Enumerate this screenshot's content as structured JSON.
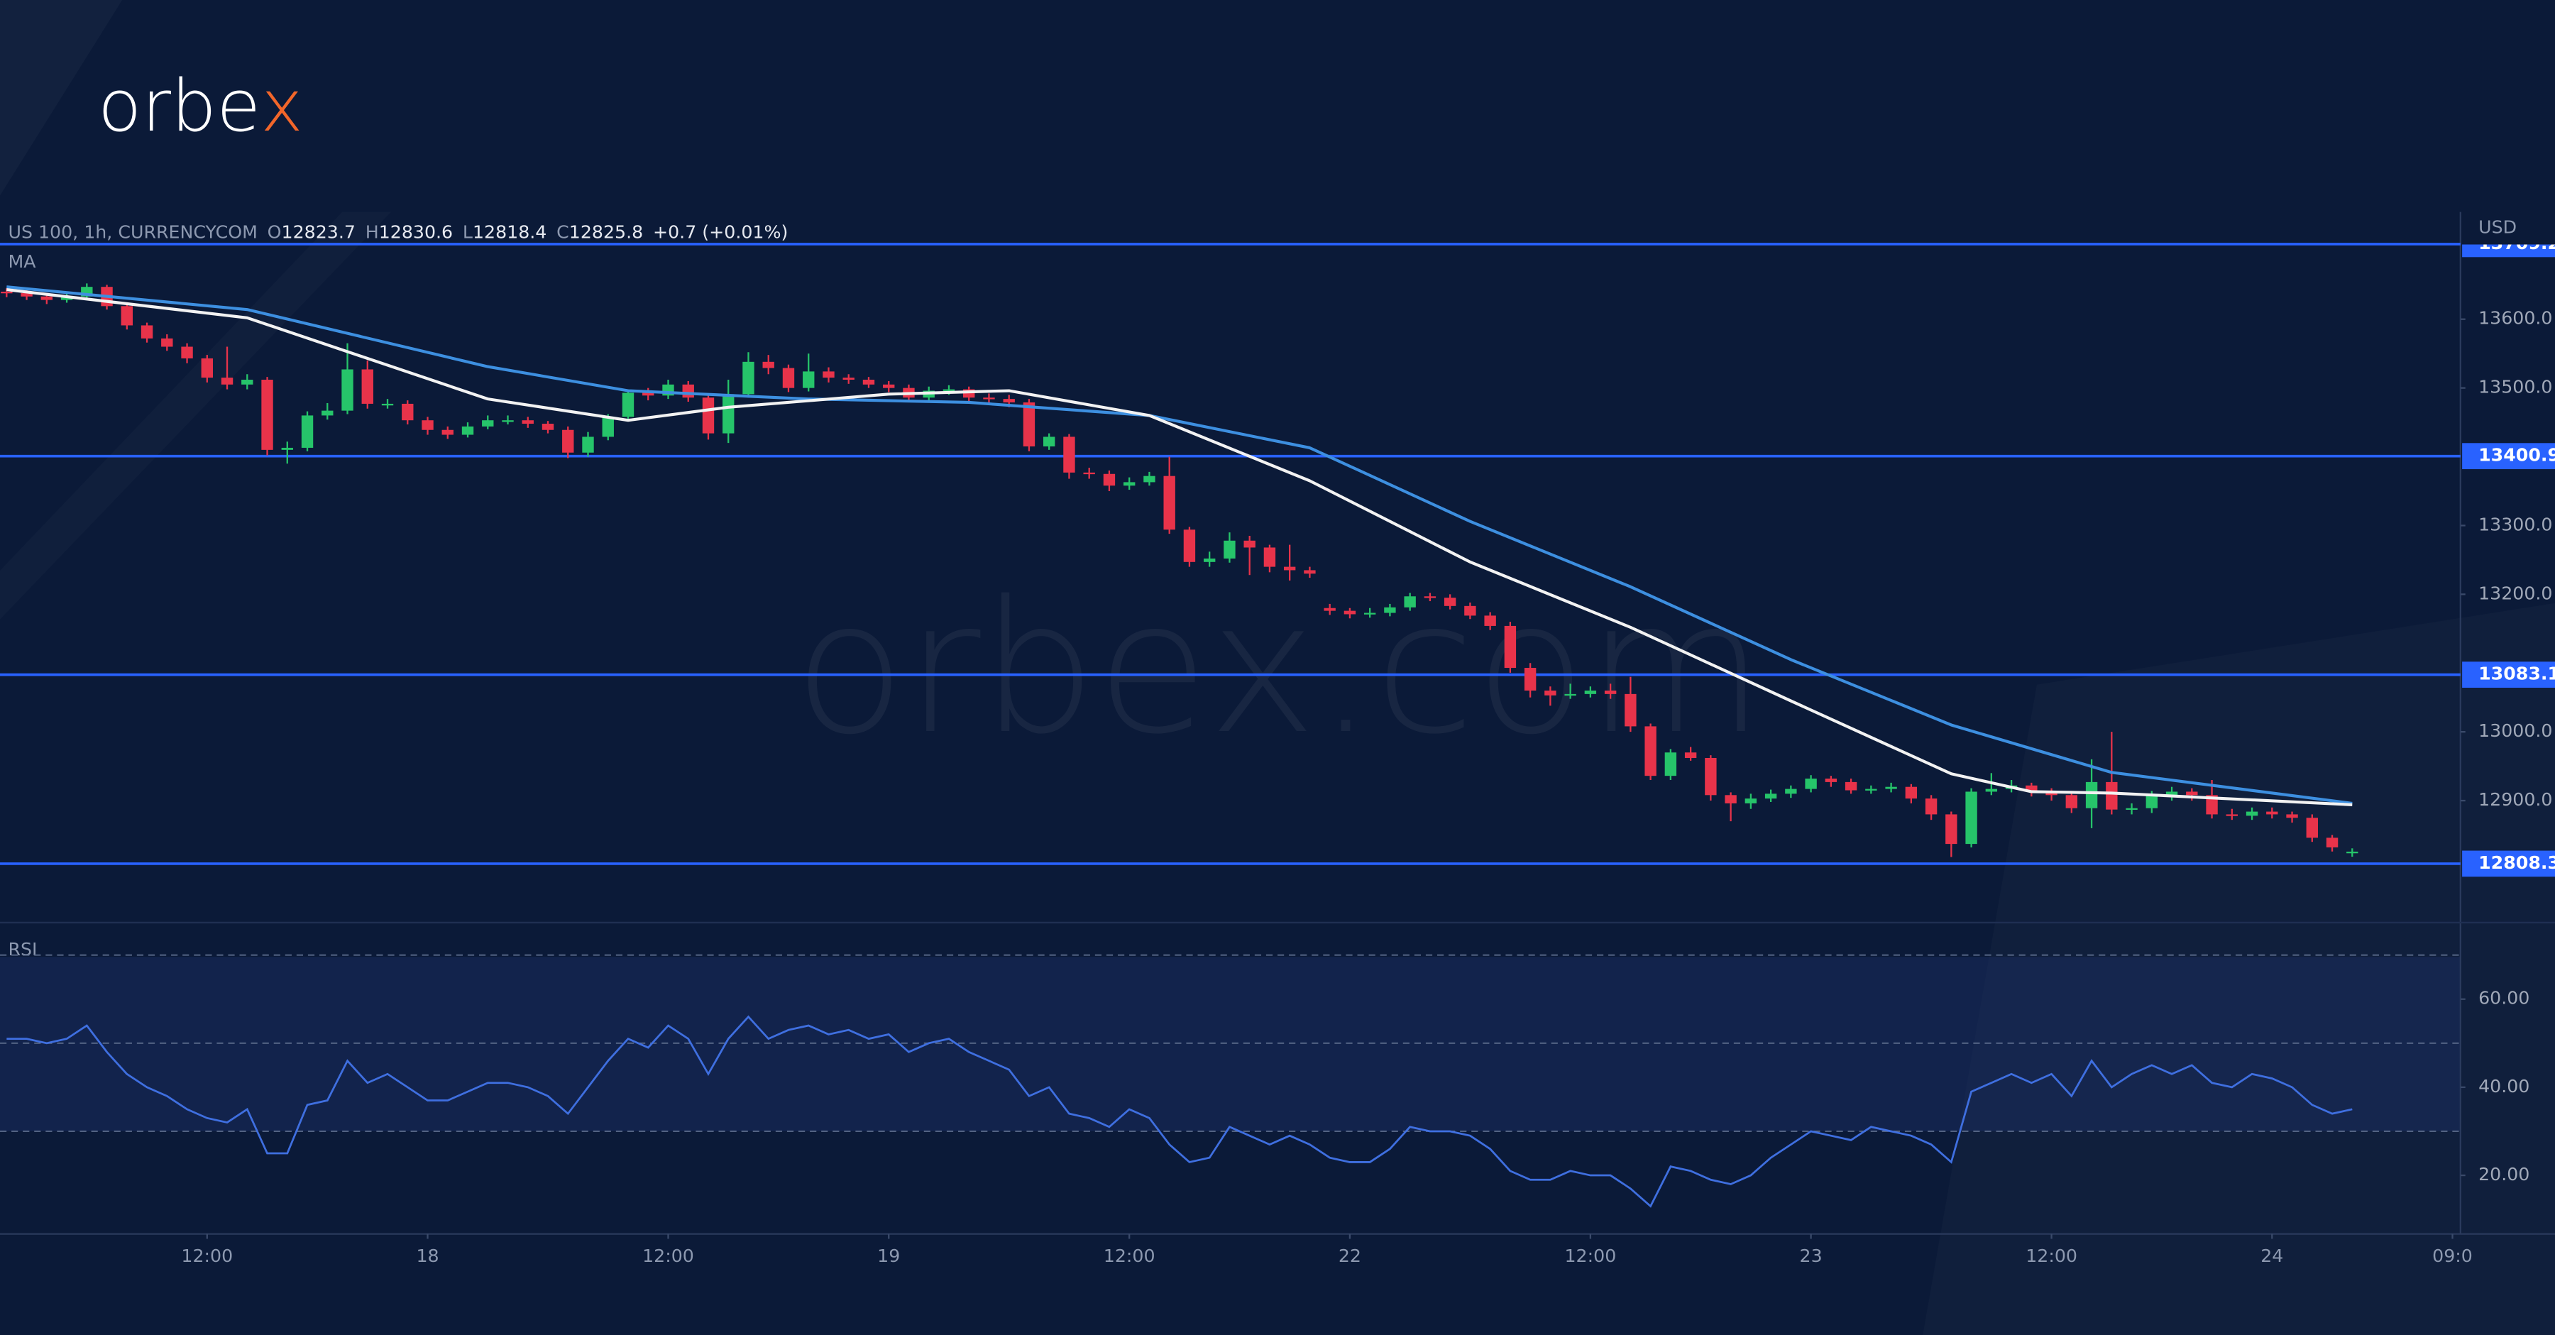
{
  "chart_data": {
    "type": "candlestick",
    "logo": [
      "orbe",
      "x"
    ],
    "watermark": [
      "orbe",
      "x",
      ".com"
    ],
    "title": "US 100, 1h, CURRENCYCOM",
    "ohlc_labels": [
      "O",
      "H",
      "L",
      "C"
    ],
    "change": "+0.7 (+0.01%)",
    "y_unit": "USD",
    "up_color": "#26c46a",
    "down_color": "#e8334a",
    "xlim": [
      -0.33,
      122.4
    ],
    "ylim": [
      12725,
      13756
    ],
    "xticks": [
      {
        "value": 10,
        "label": "12:00"
      },
      {
        "value": 21,
        "label": "18"
      },
      {
        "value": 33,
        "label": "12:00"
      },
      {
        "value": 44,
        "label": "19"
      },
      {
        "value": 56,
        "label": "12:00"
      },
      {
        "value": 67,
        "label": "22"
      },
      {
        "value": 79,
        "label": "12:00"
      },
      {
        "value": 90,
        "label": "23"
      },
      {
        "value": 102,
        "label": "12:00"
      },
      {
        "value": 113,
        "label": "24"
      },
      {
        "value": 122,
        "label": "09:0"
      }
    ],
    "yticks": [
      {
        "value": 13600,
        "label": "13600.0"
      },
      {
        "value": 13500,
        "label": "13500.0"
      },
      {
        "value": 13300,
        "label": "13300.0"
      },
      {
        "value": 13200,
        "label": "13200.0"
      },
      {
        "value": 13000,
        "label": "13000.0"
      },
      {
        "value": 12900,
        "label": "12900.0"
      }
    ],
    "levels": [
      13709.2,
      13400.9,
      13083.1,
      12808.3
    ],
    "level_color": "#2962ff",
    "open": [
      13640,
      13638,
      13633,
      13628,
      13633,
      13647,
      13619,
      13591,
      13572,
      13560,
      13543,
      13515,
      13505,
      13512,
      13410,
      13413,
      13460,
      13467,
      13527,
      13477,
      13477,
      13453,
      13439,
      13432,
      13444,
      13453,
      13453,
      13448,
      13439,
      13406,
      13429,
      13458,
      13493,
      13489,
      13505,
      13486,
      13434,
      13491,
      13538,
      13529,
      13500,
      13524,
      13515,
      13512,
      13505,
      13500,
      13486,
      13496,
      13498,
      13486,
      13484,
      13479,
      13415,
      13429,
      13377,
      13375,
      13358,
      13363,
      13372,
      13294,
      13247,
      13252,
      13278,
      13268,
      13240,
      13235,
      13180,
      13176,
      13171,
      13173,
      13181,
      13197,
      13195,
      13183,
      13169,
      13154,
      13093,
      13060,
      13053,
      13055,
      13060,
      13055,
      13008,
      12936,
      12970,
      12962,
      12908,
      12896,
      12903,
      12910,
      12917,
      12932,
      12927,
      12915,
      12917,
      12920,
      12903,
      12880,
      12837,
      12913,
      12917,
      12922,
      12913,
      12908,
      12889,
      12927,
      12887,
      12889,
      12908,
      12913,
      12908,
      12880,
      12878,
      12884,
      12880,
      12875,
      12846,
      12823.7
    ],
    "high": [
      13645,
      13642,
      13637,
      13638,
      13652,
      13650,
      13622,
      13595,
      13578,
      13565,
      13548,
      13560,
      13520,
      13516,
      13422,
      13466,
      13478,
      13565,
      13540,
      13484,
      13482,
      13458,
      13444,
      13450,
      13460,
      13460,
      13458,
      13452,
      13444,
      13436,
      13462,
      13498,
      13500,
      13512,
      13510,
      13492,
      13512,
      13552,
      13548,
      13534,
      13550,
      13530,
      13520,
      13516,
      13510,
      13505,
      13502,
      13504,
      13502,
      13492,
      13490,
      13484,
      13434,
      13433,
      13384,
      13380,
      13370,
      13378,
      13400,
      13298,
      13262,
      13290,
      13285,
      13272,
      13272,
      13240,
      13186,
      13180,
      13180,
      13186,
      13202,
      13202,
      13200,
      13188,
      13174,
      13160,
      13100,
      13066,
      13070,
      13066,
      13070,
      13080,
      13012,
      12975,
      12978,
      12966,
      12912,
      12910,
      12916,
      12922,
      12937,
      12936,
      12932,
      12922,
      12926,
      12924,
      12908,
      12884,
      12918,
      12940,
      12930,
      12926,
      12918,
      12912,
      12960,
      13000,
      12896,
      12914,
      12920,
      12918,
      12930,
      12888,
      12890,
      12890,
      12884,
      12880,
      12850,
      12830.6
    ],
    "low": [
      13632,
      13628,
      13622,
      13624,
      13630,
      13614,
      13585,
      13566,
      13554,
      13536,
      13508,
      13498,
      13498,
      13402,
      13390,
      13408,
      13454,
      13462,
      13470,
      13470,
      13447,
      13432,
      13426,
      13428,
      13440,
      13447,
      13442,
      13434,
      13398,
      13400,
      13424,
      13452,
      13482,
      13484,
      13480,
      13425,
      13420,
      13486,
      13520,
      13494,
      13495,
      13508,
      13506,
      13500,
      13494,
      13480,
      13482,
      13490,
      13480,
      13478,
      13472,
      13408,
      13410,
      13368,
      13368,
      13350,
      13352,
      13358,
      13288,
      13240,
      13240,
      13246,
      13228,
      13232,
      13220,
      13224,
      13170,
      13165,
      13166,
      13168,
      13176,
      13190,
      13178,
      13164,
      13148,
      13086,
      13050,
      13038,
      13048,
      13050,
      13048,
      13000,
      12930,
      12930,
      12958,
      12900,
      12870,
      12888,
      12898,
      12904,
      12912,
      12920,
      12910,
      12910,
      12912,
      12896,
      12872,
      12818,
      12832,
      12908,
      12912,
      12906,
      12900,
      12882,
      12860,
      12880,
      12880,
      12882,
      12900,
      12900,
      12874,
      12872,
      12872,
      12874,
      12868,
      12840,
      12826,
      12818.4
    ],
    "close": [
      13638,
      13633,
      13628,
      13633,
      13647,
      13619,
      13591,
      13572,
      13560,
      13543,
      13515,
      13505,
      13512,
      13410,
      13413,
      13460,
      13467,
      13527,
      13477,
      13477,
      13453,
      13439,
      13432,
      13444,
      13453,
      13453,
      13448,
      13439,
      13406,
      13429,
      13458,
      13493,
      13489,
      13505,
      13486,
      13434,
      13491,
      13538,
      13529,
      13500,
      13524,
      13515,
      13512,
      13505,
      13500,
      13486,
      13496,
      13498,
      13486,
      13484,
      13479,
      13415,
      13429,
      13377,
      13375,
      13358,
      13363,
      13372,
      13294,
      13247,
      13252,
      13278,
      13268,
      13240,
      13235,
      13230,
      13176,
      13171,
      13173,
      13181,
      13197,
      13195,
      13183,
      13169,
      13154,
      13093,
      13060,
      13053,
      13055,
      13060,
      13055,
      13008,
      12936,
      12970,
      12962,
      12908,
      12896,
      12903,
      12910,
      12917,
      12932,
      12927,
      12915,
      12917,
      12920,
      12903,
      12880,
      12837,
      12913,
      12917,
      12922,
      12913,
      12908,
      12889,
      12927,
      12887,
      12889,
      12908,
      12913,
      12908,
      12880,
      12878,
      12884,
      12880,
      12875,
      12846,
      12832,
      12825.8
    ],
    "ma": {
      "label": "MA",
      "series": [
        {
          "color": "#3d8fe0",
          "x": [
            0,
            12,
            24,
            31,
            40,
            48,
            57,
            65,
            73,
            81,
            89,
            97,
            105,
            117
          ],
          "values": [
            13647,
            13614,
            13531,
            13496,
            13484,
            13479,
            13460,
            13413,
            13306,
            13211,
            13105,
            13010,
            12941,
            12896
          ]
        },
        {
          "color": "#f2f2f2",
          "x": [
            0,
            12,
            24,
            31,
            36,
            44,
            50,
            57,
            65,
            73,
            81,
            89,
            97,
            101,
            105,
            117
          ],
          "values": [
            13643,
            13602,
            13484,
            13453,
            13472,
            13491,
            13496,
            13460,
            13365,
            13247,
            13152,
            13045,
            12939,
            12913,
            12911,
            12894
          ]
        }
      ]
    },
    "rsi": {
      "label": "RSI",
      "color": "#3f6fe0",
      "ylim": [
        6.7,
        77
      ],
      "yticks": [
        {
          "value": 60,
          "label": "60.00"
        },
        {
          "value": 40,
          "label": "40.00"
        },
        {
          "value": 20,
          "label": "20.00"
        }
      ],
      "levels": [
        70,
        50,
        30
      ],
      "values": [
        51,
        51,
        50,
        51,
        54,
        48,
        43,
        40,
        38,
        35,
        33,
        32,
        35,
        25,
        25,
        36,
        37,
        46,
        41,
        43,
        40,
        37,
        37,
        39,
        41,
        41,
        40,
        38,
        34,
        40,
        46,
        51,
        49,
        54,
        51,
        43,
        51,
        56,
        51,
        53,
        54,
        52,
        53,
        51,
        52,
        48,
        50,
        51,
        48,
        46,
        44,
        38,
        40,
        34,
        33,
        31,
        35,
        33,
        27,
        23,
        24,
        31,
        29,
        27,
        29,
        27,
        24,
        23,
        23,
        26,
        31,
        30,
        30,
        29,
        26,
        21,
        19,
        19,
        21,
        20,
        20,
        17,
        13,
        22,
        21,
        19,
        18,
        20,
        24,
        27,
        30,
        29,
        28,
        31,
        30,
        29,
        27,
        23,
        39,
        41,
        43,
        41,
        43,
        38,
        46,
        40,
        43,
        45,
        43,
        45,
        41,
        40,
        43,
        42,
        40,
        36,
        34,
        35
      ]
    }
  }
}
